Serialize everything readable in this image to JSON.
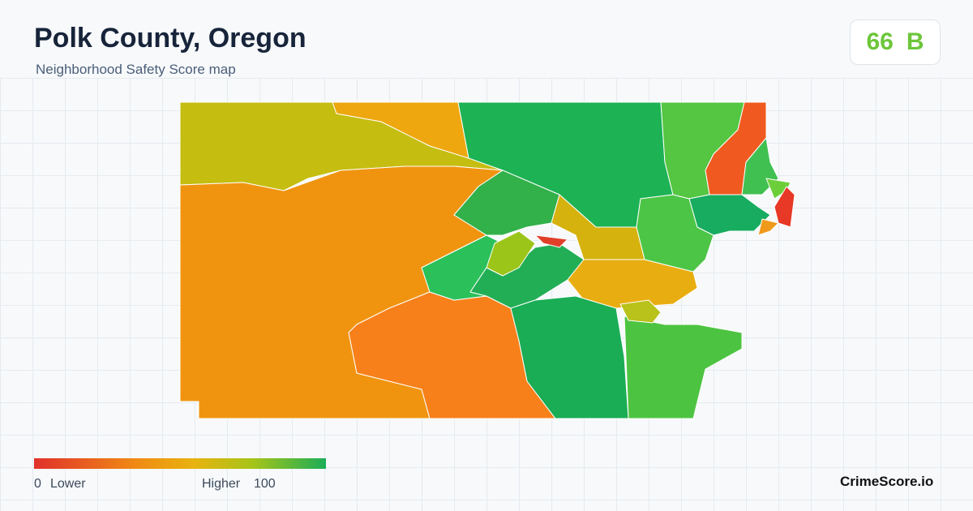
{
  "header": {
    "title": "Polk County, Oregon",
    "subtitle": "Neighborhood Safety Score map"
  },
  "score": {
    "value": "66",
    "grade": "B"
  },
  "legend": {
    "min": "0",
    "min_label": "Lower",
    "max_label": "Higher",
    "max": "100"
  },
  "brand": "CrimeScore.io"
}
